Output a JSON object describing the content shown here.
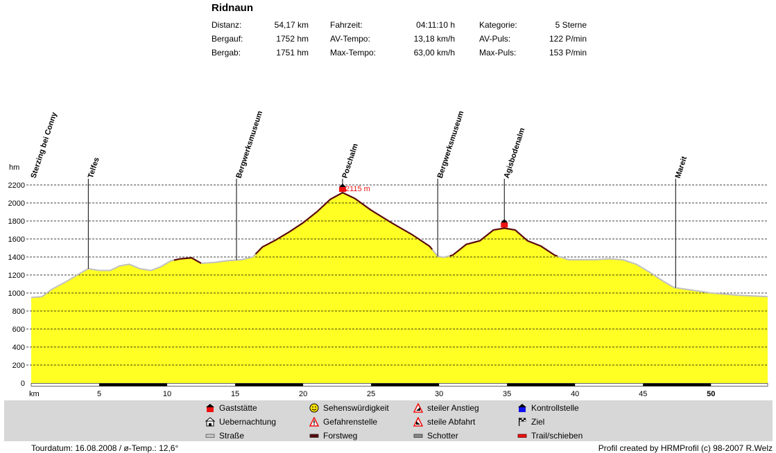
{
  "header": {
    "title": "Ridnaun",
    "stats": [
      [
        {
          "label": "Distanz:",
          "value": "54,17 km"
        },
        {
          "label": "Fahrzeit:",
          "value": "04:11:10 h"
        },
        {
          "label": "Kategorie:",
          "value": "5 Sterne"
        }
      ],
      [
        {
          "label": "Bergauf:",
          "value": "1752 hm"
        },
        {
          "label": "AV-Tempo:",
          "value": "13,18 km/h"
        },
        {
          "label": "AV-Puls:",
          "value": "122 P/min"
        }
      ],
      [
        {
          "label": "Bergab:",
          "value": "1751 hm"
        },
        {
          "label": "Max-Tempo:",
          "value": "63,00 km/h"
        },
        {
          "label": "Max-Puls:",
          "value": "153 P/min"
        }
      ]
    ]
  },
  "chart_data": {
    "type": "area",
    "ylabel": "hm",
    "xlabel": "km",
    "xlim": [
      0,
      54.17
    ],
    "ylim": [
      0,
      2200
    ],
    "yticks": [
      0,
      200,
      400,
      600,
      800,
      1000,
      1200,
      1400,
      1600,
      1800,
      2000,
      2200
    ],
    "xticks": [
      5,
      10,
      15,
      20,
      25,
      30,
      35,
      40,
      45,
      50
    ],
    "grid": "horizontal-dashed",
    "fill_color": "#ffff24",
    "profile": {
      "x": [
        0,
        0.8,
        1.5,
        2.5,
        3.5,
        4.2,
        5,
        5.8,
        6.5,
        7.2,
        8,
        8.8,
        9.5,
        10.3,
        11,
        11.8,
        12.5,
        13.5,
        14.5,
        15.5,
        16.3,
        17,
        18,
        19,
        20,
        21,
        22,
        22.9,
        23.8,
        25,
        26.5,
        28,
        29.3,
        29.9,
        30.3,
        31,
        32,
        33,
        34,
        34.8,
        35.6,
        36.5,
        37.5,
        38.5,
        39.5,
        40.5,
        41.5,
        42.5,
        43.5,
        44.5,
        45.5,
        46.5,
        47.3,
        48,
        50,
        52,
        54.17
      ],
      "y": [
        950,
        960,
        1040,
        1120,
        1210,
        1270,
        1250,
        1250,
        1300,
        1320,
        1270,
        1250,
        1290,
        1360,
        1380,
        1390,
        1330,
        1340,
        1360,
        1370,
        1400,
        1510,
        1590,
        1680,
        1780,
        1900,
        2040,
        2115,
        2050,
        1920,
        1780,
        1650,
        1520,
        1410,
        1395,
        1420,
        1540,
        1580,
        1700,
        1720,
        1700,
        1580,
        1520,
        1420,
        1370,
        1370,
        1370,
        1380,
        1370,
        1320,
        1230,
        1130,
        1060,
        1045,
        1000,
        975,
        960
      ]
    },
    "surface_segments": [
      {
        "type": "Straße",
        "from": 0,
        "to": 10.5
      },
      {
        "type": "Forstweg",
        "from": 10.5,
        "to": 12.5
      },
      {
        "type": "Straße",
        "from": 12.5,
        "to": 16.5
      },
      {
        "type": "Forstweg",
        "from": 16.5,
        "to": 29.5
      },
      {
        "type": "Straße",
        "from": 29.5,
        "to": 30.8
      },
      {
        "type": "Forstweg",
        "from": 30.8,
        "to": 38.7
      },
      {
        "type": "Straße",
        "from": 38.7,
        "to": 54.17
      }
    ],
    "waypoints": [
      {
        "name": "Sterzing bei Conny",
        "x": 0
      },
      {
        "name": "Telfes",
        "x": 4.2
      },
      {
        "name": "Bergwerksmuseum",
        "x": 15.1
      },
      {
        "name": "Poschalm",
        "x": 22.9,
        "icon": "Gaststätte"
      },
      {
        "name": "Bergwerksmuseum",
        "x": 29.9
      },
      {
        "name": "Agisbodenalm",
        "x": 34.8,
        "icon": "Gaststätte"
      },
      {
        "name": "Mareit",
        "x": 47.4
      }
    ],
    "peak_label": {
      "text": "2115 m",
      "x": 22.9,
      "y": 2115
    },
    "colors": {
      "surface_road": "#c0c0c0",
      "surface_forest": "#5a0a0a",
      "gaststaette": "#ee1111",
      "axis_band": "#000000"
    }
  },
  "legend": [
    {
      "icon": "gaststaette-icon",
      "label": "Gaststätte"
    },
    {
      "icon": "sehenswuerdigkeit-icon",
      "label": "Sehenswürdigkeit"
    },
    {
      "icon": "steiler-anstieg-icon",
      "label": "steiler Anstieg"
    },
    {
      "icon": "kontrollstelle-icon",
      "label": "Kontrollstelle"
    },
    {
      "icon": "uebernachtung-icon",
      "label": "Uebernachtung"
    },
    {
      "icon": "gefahrenstelle-icon",
      "label": "Gefahrenstelle"
    },
    {
      "icon": "steile-abfahrt-icon",
      "label": "steile Abfahrt"
    },
    {
      "icon": "ziel-icon",
      "label": "Ziel"
    },
    {
      "icon": "strasse-icon",
      "label": "Straße"
    },
    {
      "icon": "forstweg-icon",
      "label": "Forstweg"
    },
    {
      "icon": "schotter-icon",
      "label": "Schotter"
    },
    {
      "icon": "trail-icon",
      "label": "Trail/schieben"
    }
  ],
  "footer": {
    "left": "Tourdatum: 16.08.2008  /  ø-Temp.: 12,6°",
    "right": "Profil created by HRMProfil (c) 98-2007 R.Welz"
  }
}
